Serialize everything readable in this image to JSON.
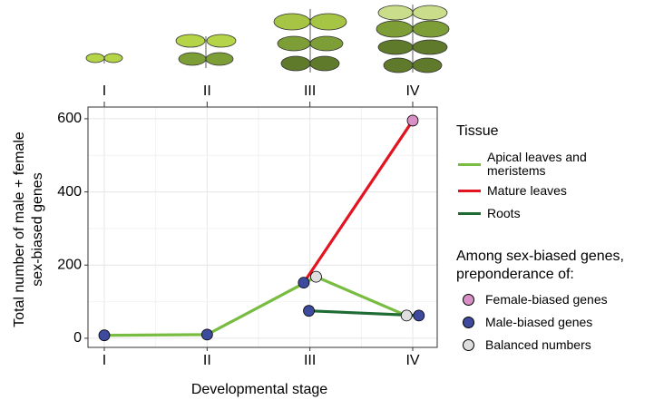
{
  "chart_data": {
    "type": "line",
    "categories": [
      "I",
      "II",
      "III",
      "IV"
    ],
    "xlabel": "Developmental stage",
    "ylabel": [
      "Total number of male + female",
      "sex-biased genes"
    ],
    "ylim": [
      -25,
      632
    ],
    "yticks": [
      0,
      200,
      400,
      600
    ],
    "grid": true,
    "legend_title": "Tissue",
    "series": [
      {
        "name": "Apical leaves and meristems",
        "color": "#79bc42",
        "values": [
          8,
          10,
          168,
          62
        ],
        "point_markers": [
          1,
          1,
          2,
          2
        ]
      },
      {
        "name": "Mature leaves",
        "color": "#e2141f",
        "values": [
          null,
          null,
          152,
          595
        ],
        "point_markers": [
          null,
          null,
          1,
          0
        ]
      },
      {
        "name": "Roots",
        "color": "#1e6b33",
        "values": [
          null,
          null,
          75,
          62
        ],
        "point_markers": [
          null,
          null,
          1,
          1
        ]
      }
    ],
    "marker_legend_title": "Among sex-biased genes, preponderance of:",
    "markers": [
      {
        "name": "Female-biased genes",
        "color": "#d88fc6"
      },
      {
        "name": "Male-biased genes",
        "color": "#3d4a9e"
      },
      {
        "name": "Balanced numbers",
        "color": "#dedede"
      }
    ]
  }
}
